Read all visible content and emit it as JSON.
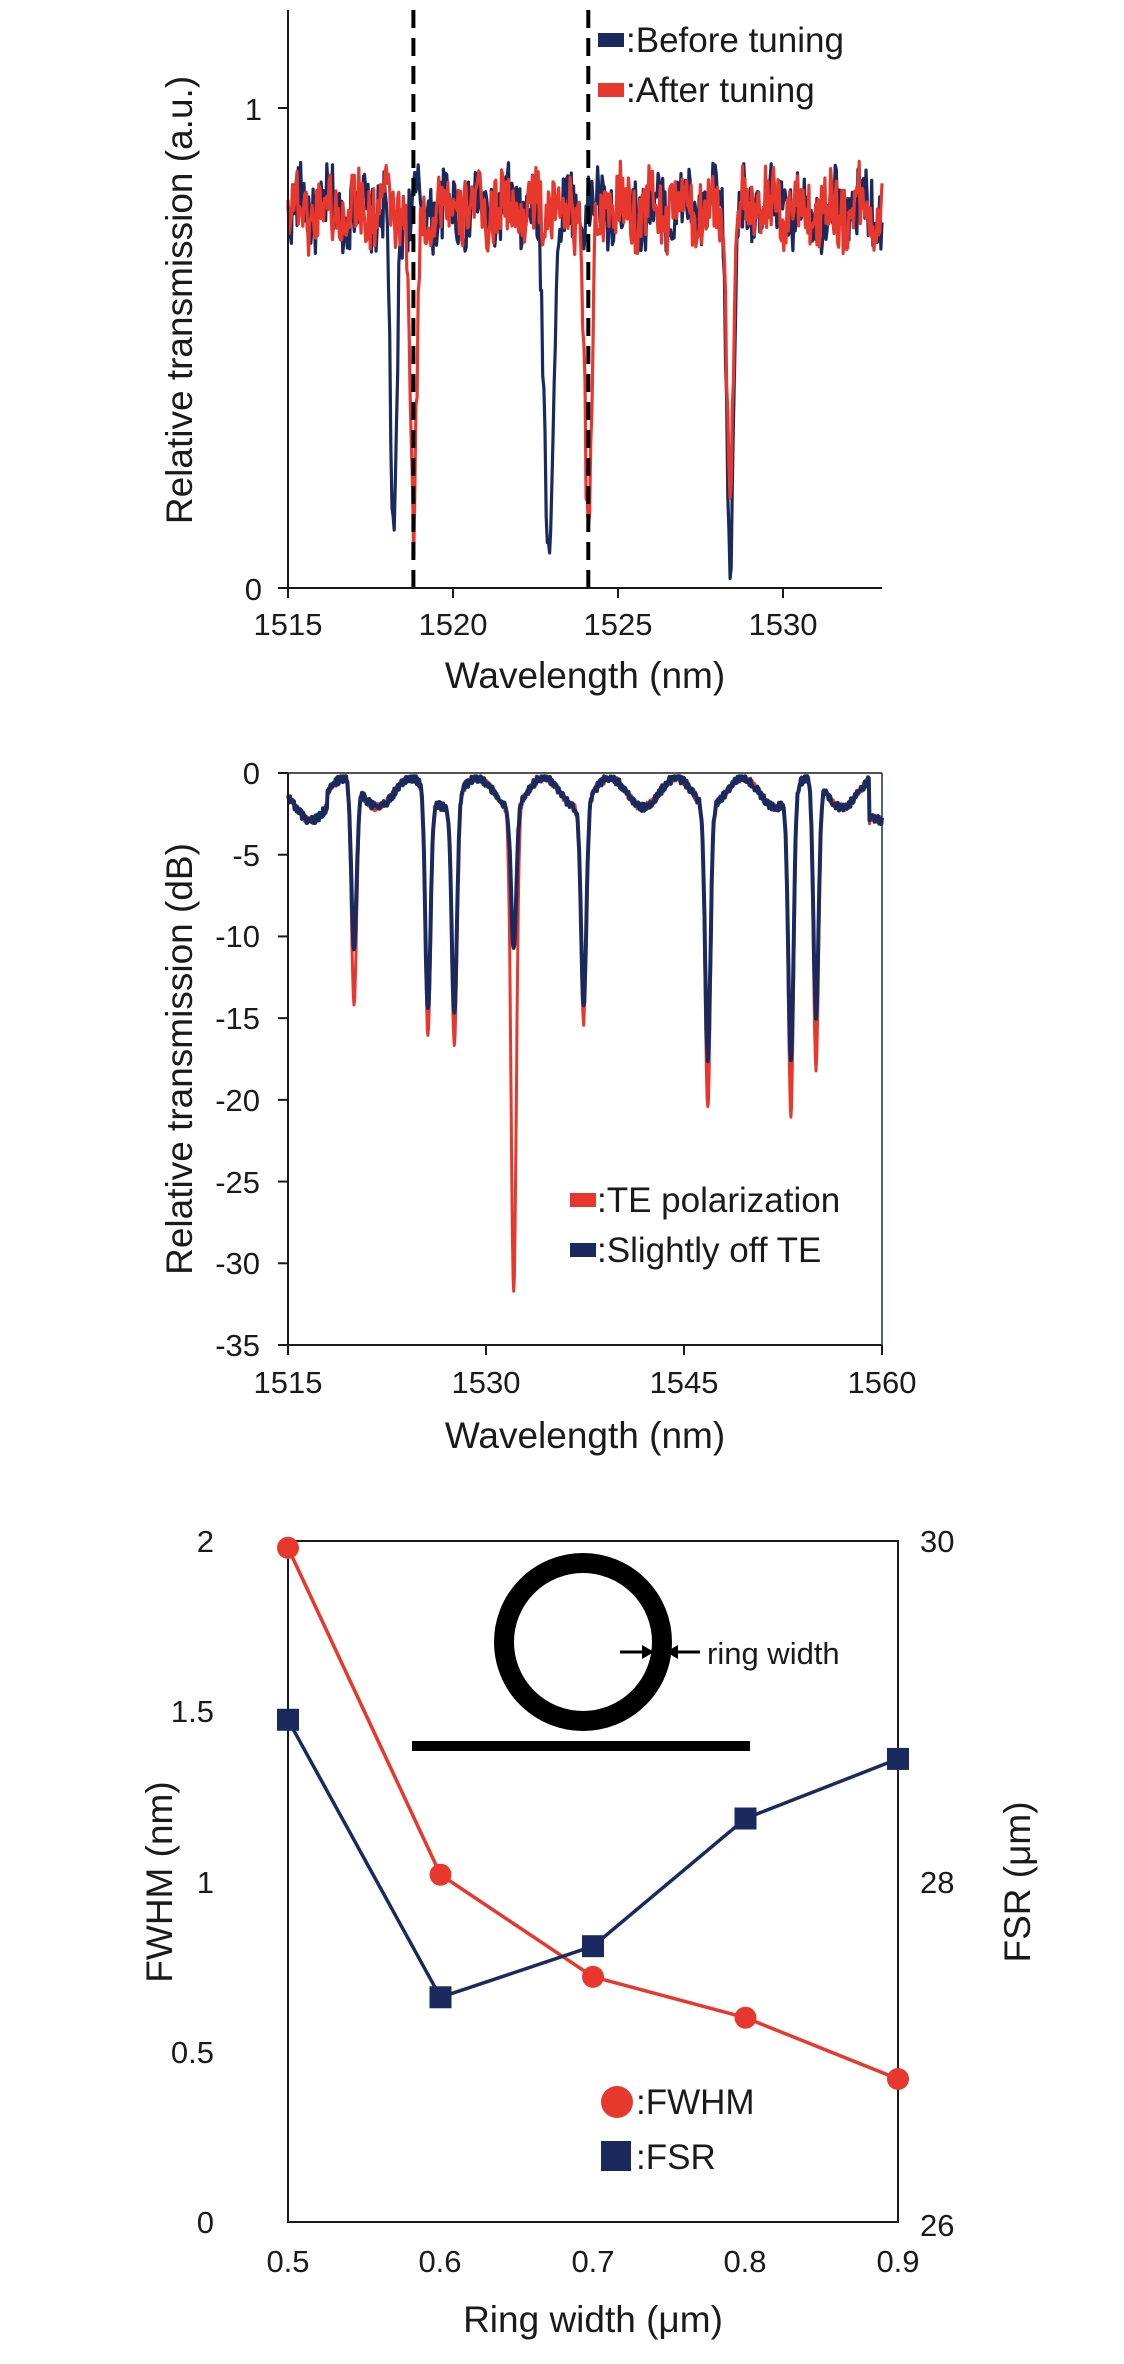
{
  "colors": {
    "navy": "#1b2a5e",
    "red": "#e8382e",
    "axis": "#1a1a1a",
    "dash": "#000000"
  },
  "chart_data": [
    {
      "type": "line",
      "xlabel": "Wavelength (nm)",
      "ylabel": "Relative transmission (a.u.)",
      "xlim": [
        1515,
        1533
      ],
      "ylim": [
        0,
        1.15
      ],
      "xticks": [
        "1515",
        "1520",
        "1525",
        "1530"
      ],
      "yticks": [
        "0",
        "1"
      ],
      "vlines": [
        1518.8,
        1524.1
      ],
      "legend": {
        "position": "top-right",
        "entries": [
          ":Before tuning",
          ":After tuning"
        ]
      },
      "series": [
        {
          "name": ":Before tuning",
          "color": "#1b2a5e",
          "baseline": 0.79,
          "noise": 0.07,
          "dips": [
            [
              1518.2,
              0.05,
              0.28
            ],
            [
              1522.9,
              0.13,
              0.45
            ],
            [
              1528.4,
              0.04,
              0.3
            ]
          ]
        },
        {
          "name": ":After tuning",
          "color": "#e8382e",
          "baseline": 0.79,
          "noise": 0.07,
          "dips": [
            [
              1518.8,
              0.1,
              0.3
            ],
            [
              1524.1,
              0.12,
              0.32
            ],
            [
              1528.4,
              0.25,
              0.3
            ]
          ]
        }
      ]
    },
    {
      "type": "line",
      "xlabel": "Wavelength (nm)",
      "ylabel": "Relative transmission (dB)",
      "xlim": [
        1515,
        1560
      ],
      "ylim": [
        -35,
        0
      ],
      "xticks": [
        "1515",
        "1530",
        "1545",
        "1560"
      ],
      "yticks": [
        "0",
        "-5",
        "-10",
        "-15",
        "-20",
        "-25",
        "-30",
        "-35"
      ],
      "legend": {
        "position": "bottom-right",
        "entries": [
          ":TE polarization",
          ":Slightly off TE"
        ]
      },
      "series": [
        {
          "name": ":TE polarization",
          "color": "#e8382e",
          "dips": [
            [
              1520.0,
              -14.8
            ],
            [
              1525.6,
              -16.1
            ],
            [
              1527.6,
              -16.0
            ],
            [
              1532.1,
              -30.8
            ],
            [
              1537.4,
              -14.5
            ],
            [
              1546.8,
              -19.7
            ],
            [
              1553.1,
              -20.8
            ],
            [
              1555.0,
              -18.7
            ]
          ]
        },
        {
          "name": ":Slightly off TE",
          "color": "#1b2a5e",
          "dips": [
            [
              1520.0,
              -11.2
            ],
            [
              1525.6,
              -14.5
            ],
            [
              1527.6,
              -14.2
            ],
            [
              1532.1,
              -10.0
            ],
            [
              1537.4,
              -13.5
            ],
            [
              1546.8,
              -16.5
            ],
            [
              1553.1,
              -17.5
            ],
            [
              1555.0,
              -15.5
            ]
          ]
        }
      ]
    },
    {
      "type": "line",
      "xlabel": "Ring width (μm)",
      "ylabel": "FWHM (nm)",
      "y2label": "FSR (μm)",
      "xlim": [
        0.5,
        0.9
      ],
      "ylim": [
        0,
        2
      ],
      "y2lim": [
        26,
        30
      ],
      "x": [
        0.5,
        0.6,
        0.7,
        0.8,
        0.9
      ],
      "xticks": [
        "0.5",
        "0.6",
        "0.7",
        "0.8",
        "0.9"
      ],
      "yticks": [
        "0",
        "0.5",
        "1",
        "1.5",
        "2"
      ],
      "y2ticks": [
        "26",
        "28",
        "30"
      ],
      "inset_label": "ring width",
      "legend": {
        "position": "bottom-right",
        "entries": [
          ":FWHM",
          ":FSR"
        ]
      },
      "series": [
        {
          "name": ":FWHM",
          "color": "#e8382e",
          "marker": "circle",
          "axis": "left",
          "values": [
            1.98,
            1.02,
            0.72,
            0.6,
            0.42
          ]
        },
        {
          "name": ":FSR",
          "color": "#1b2a5e",
          "marker": "square",
          "axis": "right",
          "values": [
            28.95,
            27.32,
            27.62,
            28.37,
            28.72
          ]
        }
      ]
    }
  ]
}
